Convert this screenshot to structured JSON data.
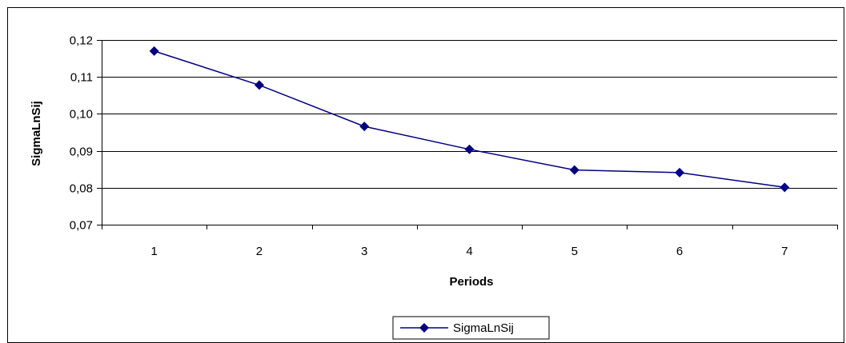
{
  "chart_data": {
    "type": "line",
    "title": "",
    "xlabel": "Periods",
    "ylabel": "SigmaLnSij",
    "categories": [
      "1",
      "2",
      "3",
      "4",
      "5",
      "6",
      "7"
    ],
    "series": [
      {
        "name": "SigmaLnSij",
        "values": [
          0.117,
          0.1078,
          0.0966,
          0.0904,
          0.0848,
          0.0841,
          0.0801
        ],
        "color": "#000080"
      }
    ],
    "ylim": [
      0.07,
      0.12
    ],
    "yticks": [
      0.07,
      0.08,
      0.09,
      0.1,
      0.11,
      0.12
    ],
    "ytick_labels": [
      "0,07",
      "0,08",
      "0,09",
      "0,10",
      "0,11",
      "0,12"
    ],
    "grid": true,
    "legend_position": "bottom-center",
    "marker": "diamond"
  }
}
